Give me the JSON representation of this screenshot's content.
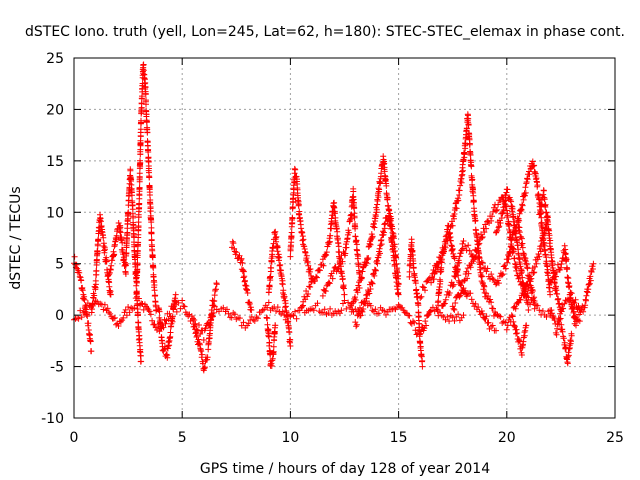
{
  "chart_data": {
    "type": "scatter",
    "title": "dSTEC Iono. truth (yell, Lon=245, Lat=62, h=180): STEC-STEC_elemax in phase cont.",
    "xlabel": "GPS time / hours of day 128 of year 2014",
    "ylabel": "dSTEC  / TECUs",
    "xlim": [
      0,
      25
    ],
    "ylim": [
      -10,
      25
    ],
    "xticks": [
      0,
      5,
      10,
      15,
      20,
      25
    ],
    "yticks": [
      -10,
      -5,
      0,
      5,
      10,
      15,
      20,
      25
    ],
    "grid": true,
    "marker": "+",
    "series_color": "#ff0000",
    "tracks": [
      [
        [
          0.0,
          5.5
        ],
        [
          0.3,
          3.5
        ],
        [
          0.5,
          1.0
        ],
        [
          0.7,
          -1.5
        ],
        [
          0.8,
          -3.5
        ]
      ],
      [
        [
          0.0,
          -0.5
        ],
        [
          0.5,
          0.5
        ],
        [
          1.0,
          1.5
        ],
        [
          1.5,
          0.5
        ],
        [
          2.0,
          -1.0
        ],
        [
          2.5,
          0.5
        ],
        [
          3.0,
          1.5
        ],
        [
          3.5,
          0.0
        ],
        [
          4.0,
          -1.5
        ],
        [
          4.5,
          0.5
        ],
        [
          5.0,
          1.0
        ],
        [
          5.5,
          -0.5
        ],
        [
          6.0,
          -2.0
        ],
        [
          6.5,
          0.5
        ],
        [
          7.0,
          0.5
        ],
        [
          7.5,
          -0.5
        ],
        [
          8.0,
          -1.0
        ],
        [
          8.5,
          0.0
        ],
        [
          9.0,
          1.0
        ],
        [
          9.5,
          0.5
        ],
        [
          10.0,
          -0.5
        ],
        [
          10.5,
          0.5
        ],
        [
          11.0,
          1.0
        ],
        [
          11.5,
          0.5
        ],
        [
          12.0,
          0.0
        ],
        [
          12.5,
          1.0
        ],
        [
          13.0,
          0.5
        ],
        [
          13.5,
          1.5
        ],
        [
          14.0,
          0.5
        ],
        [
          14.5,
          0.0
        ],
        [
          15.0,
          1.0
        ],
        [
          15.5,
          -0.5
        ],
        [
          16.0,
          -2.0
        ],
        [
          16.5,
          0.5
        ],
        [
          17.0,
          0.0
        ],
        [
          17.5,
          -0.5
        ],
        [
          18.0,
          0.0
        ]
      ],
      [
        [
          0.8,
          0.5
        ],
        [
          1.0,
          3.0
        ],
        [
          1.1,
          7.0
        ],
        [
          1.2,
          9.5
        ],
        [
          1.3,
          8.0
        ],
        [
          1.5,
          5.0
        ],
        [
          1.7,
          2.0
        ]
      ],
      [
        [
          1.6,
          3.5
        ],
        [
          1.8,
          5.5
        ],
        [
          2.0,
          8.5
        ],
        [
          2.1,
          9.0
        ],
        [
          2.2,
          7.0
        ],
        [
          2.4,
          4.0
        ]
      ],
      [
        [
          2.4,
          5.0
        ],
        [
          2.5,
          10.0
        ],
        [
          2.6,
          14.0
        ],
        [
          2.7,
          11.0
        ],
        [
          2.8,
          6.0
        ],
        [
          2.9,
          2.0
        ],
        [
          3.0,
          -2.0
        ],
        [
          3.1,
          -4.5
        ]
      ],
      [
        [
          2.9,
          3.0
        ],
        [
          3.0,
          10.0
        ],
        [
          3.1,
          19.0
        ],
        [
          3.2,
          24.5
        ],
        [
          3.3,
          22.0
        ],
        [
          3.4,
          17.0
        ],
        [
          3.5,
          12.0
        ],
        [
          3.6,
          7.0
        ],
        [
          3.7,
          3.0
        ],
        [
          3.8,
          0.5
        ]
      ],
      [
        [
          3.9,
          1.0
        ],
        [
          4.1,
          -3.0
        ],
        [
          4.3,
          -4.0
        ],
        [
          4.5,
          -1.0
        ],
        [
          4.7,
          2.0
        ]
      ],
      [
        [
          5.5,
          -0.5
        ],
        [
          5.8,
          -3.0
        ],
        [
          6.0,
          -5.0
        ],
        [
          6.2,
          -3.5
        ],
        [
          6.4,
          1.0
        ],
        [
          6.6,
          3.0
        ]
      ],
      [
        [
          7.3,
          7.0
        ],
        [
          7.5,
          6.0
        ],
        [
          7.7,
          5.5
        ],
        [
          7.8,
          4.5
        ],
        [
          8.0,
          2.0
        ],
        [
          8.2,
          0.5
        ]
      ],
      [
        [
          8.9,
          0.0
        ],
        [
          9.0,
          -2.0
        ],
        [
          9.1,
          -5.0
        ],
        [
          9.2,
          -4.0
        ],
        [
          9.3,
          -1.0
        ]
      ],
      [
        [
          9.0,
          2.0
        ],
        [
          9.2,
          7.0
        ],
        [
          9.3,
          8.0
        ],
        [
          9.5,
          5.0
        ],
        [
          9.7,
          2.0
        ],
        [
          9.9,
          -1.0
        ],
        [
          10.0,
          -3.0
        ]
      ],
      [
        [
          10.0,
          6.0
        ],
        [
          10.2,
          14.0
        ],
        [
          10.3,
          13.0
        ],
        [
          10.4,
          10.0
        ],
        [
          10.6,
          7.0
        ],
        [
          10.8,
          5.0
        ],
        [
          11.0,
          3.5
        ]
      ],
      [
        [
          10.5,
          1.0
        ],
        [
          11.0,
          3.0
        ],
        [
          11.5,
          5.0
        ],
        [
          11.8,
          7.0
        ],
        [
          12.0,
          11.0
        ],
        [
          12.1,
          9.0
        ],
        [
          12.3,
          5.0
        ],
        [
          12.5,
          2.0
        ]
      ],
      [
        [
          11.5,
          2.0
        ],
        [
          12.0,
          4.0
        ],
        [
          12.5,
          6.0
        ],
        [
          12.8,
          9.5
        ],
        [
          12.9,
          12.0
        ],
        [
          13.0,
          8.0
        ],
        [
          13.2,
          4.0
        ]
      ],
      [
        [
          12.8,
          0.5
        ],
        [
          13.2,
          3.0
        ],
        [
          13.6,
          6.0
        ],
        [
          13.9,
          9.0
        ],
        [
          14.1,
          12.5
        ],
        [
          14.3,
          15.5
        ],
        [
          14.4,
          13.0
        ],
        [
          14.6,
          9.0
        ],
        [
          14.8,
          5.0
        ],
        [
          15.0,
          2.0
        ]
      ],
      [
        [
          13.0,
          -1.0
        ],
        [
          13.4,
          1.0
        ],
        [
          13.8,
          3.5
        ],
        [
          14.0,
          5.0
        ],
        [
          14.2,
          7.0
        ],
        [
          14.4,
          9.0
        ],
        [
          14.6,
          10.0
        ],
        [
          14.8,
          7.0
        ],
        [
          15.0,
          3.0
        ]
      ],
      [
        [
          15.5,
          4.0
        ],
        [
          15.6,
          7.0
        ],
        [
          15.7,
          4.5
        ],
        [
          15.9,
          1.0
        ],
        [
          16.0,
          -3.0
        ],
        [
          16.1,
          -5.0
        ]
      ],
      [
        [
          16.0,
          2.0
        ],
        [
          16.5,
          3.5
        ],
        [
          16.8,
          5.0
        ]
      ],
      [
        [
          16.6,
          3.5
        ],
        [
          17.0,
          6.0
        ],
        [
          17.5,
          9.0
        ],
        [
          17.9,
          13.0
        ],
        [
          18.1,
          17.0
        ],
        [
          18.2,
          19.5
        ],
        [
          18.3,
          16.0
        ],
        [
          18.5,
          10.0
        ],
        [
          18.8,
          4.0
        ],
        [
          19.0,
          2.0
        ],
        [
          19.5,
          0.0
        ],
        [
          20.0,
          -1.0
        ],
        [
          20.5,
          1.0
        ],
        [
          21.0,
          3.0
        ],
        [
          21.5,
          6.0
        ],
        [
          21.9,
          9.5
        ]
      ],
      [
        [
          16.8,
          0.5
        ],
        [
          17.0,
          5.5
        ],
        [
          17.3,
          8.5
        ],
        [
          17.5,
          6.0
        ],
        [
          17.8,
          3.5
        ],
        [
          18.2,
          2.0
        ],
        [
          18.8,
          0.5
        ],
        [
          19.2,
          -1.0
        ],
        [
          19.5,
          -1.5
        ]
      ],
      [
        [
          17.5,
          0.5
        ],
        [
          18.0,
          3.0
        ],
        [
          18.5,
          6.0
        ],
        [
          19.0,
          8.5
        ],
        [
          19.5,
          10.5
        ],
        [
          19.8,
          11.5
        ],
        [
          20.0,
          10.0
        ],
        [
          20.2,
          7.0
        ],
        [
          20.5,
          4.0
        ],
        [
          21.0,
          1.5
        ],
        [
          21.5,
          0.5
        ],
        [
          22.0,
          0.0
        ]
      ],
      [
        [
          17.0,
          1.0
        ],
        [
          17.5,
          3.0
        ],
        [
          18.0,
          7.0
        ],
        [
          18.5,
          6.0
        ],
        [
          19.0,
          4.5
        ],
        [
          19.5,
          3.0
        ],
        [
          20.0,
          5.0
        ],
        [
          20.3,
          8.0
        ],
        [
          20.5,
          9.0
        ],
        [
          20.7,
          7.0
        ],
        [
          21.0,
          4.0
        ],
        [
          21.3,
          1.0
        ]
      ],
      [
        [
          19.5,
          8.0
        ],
        [
          19.8,
          10.0
        ],
        [
          20.0,
          12.0
        ],
        [
          20.2,
          11.0
        ],
        [
          20.4,
          8.0
        ],
        [
          20.6,
          5.0
        ],
        [
          20.8,
          2.5
        ],
        [
          21.0,
          0.5
        ]
      ],
      [
        [
          20.5,
          9.0
        ],
        [
          20.8,
          11.5
        ],
        [
          21.0,
          13.5
        ],
        [
          21.2,
          15.0
        ],
        [
          21.3,
          14.0
        ],
        [
          21.5,
          11.0
        ],
        [
          21.7,
          7.0
        ],
        [
          21.9,
          4.0
        ],
        [
          22.0,
          2.0
        ]
      ],
      [
        [
          21.5,
          10.0
        ],
        [
          21.7,
          12.0
        ],
        [
          21.9,
          9.0
        ],
        [
          22.1,
          5.0
        ],
        [
          22.3,
          2.0
        ],
        [
          22.5,
          0.5
        ]
      ],
      [
        [
          22.0,
          3.0
        ],
        [
          22.5,
          5.0
        ],
        [
          22.7,
          6.5
        ],
        [
          22.8,
          4.0
        ],
        [
          23.0,
          1.0
        ],
        [
          23.2,
          -1.0
        ]
      ],
      [
        [
          20.3,
          -0.5
        ],
        [
          20.5,
          -2.0
        ],
        [
          20.7,
          -3.5
        ],
        [
          20.9,
          -1.0
        ]
      ],
      [
        [
          22.5,
          -1.0
        ],
        [
          22.7,
          -3.0
        ],
        [
          22.8,
          -4.5
        ],
        [
          23.0,
          -2.0
        ]
      ],
      [
        [
          23.0,
          0.5
        ],
        [
          23.3,
          -0.5
        ],
        [
          23.6,
          1.0
        ],
        [
          23.8,
          3.0
        ],
        [
          24.0,
          5.0
        ]
      ],
      [
        [
          22.0,
          0.5
        ],
        [
          22.3,
          -1.5
        ],
        [
          22.6,
          1.0
        ],
        [
          23.0,
          2.0
        ],
        [
          23.4,
          0.5
        ]
      ]
    ]
  }
}
